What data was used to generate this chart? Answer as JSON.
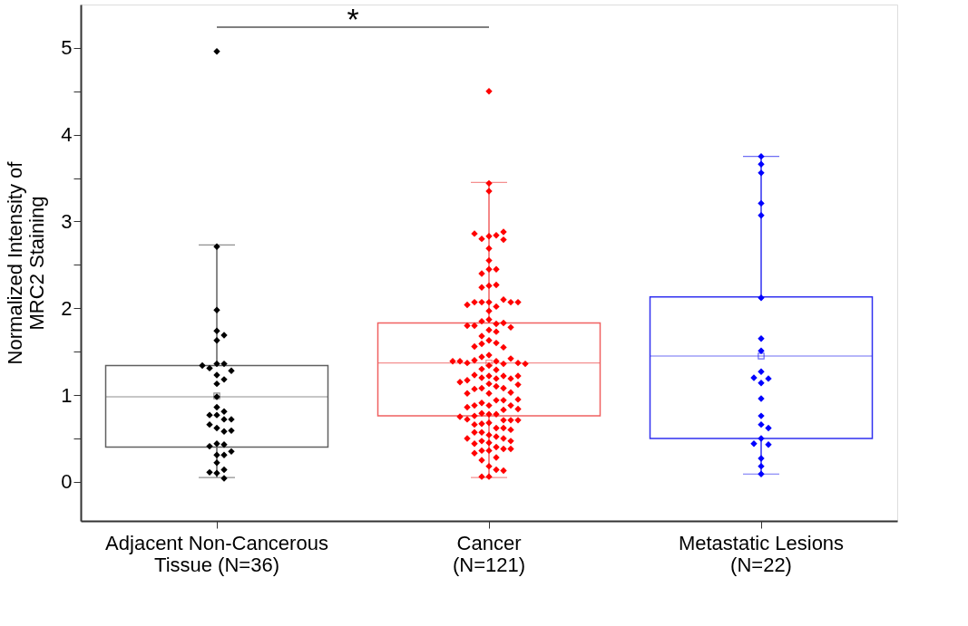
{
  "chart_data": {
    "type": "box",
    "ylabel": "Normalized Intensity of\nMRC2 Staining",
    "categories": [
      "Adjacent Non-Cancerous\nTissue (N=36)",
      "Cancer\n(N=121)",
      "Metastatic Lesions\n(N=22)"
    ],
    "boxes": [
      {
        "low": 0.05,
        "q1": 0.4,
        "median": 0.98,
        "q3": 1.34,
        "high": 2.73,
        "mean": 0.99
      },
      {
        "low": 0.05,
        "q1": 0.76,
        "median": 1.37,
        "q3": 1.83,
        "high": 3.45,
        "mean": 1.37
      },
      {
        "low": 0.09,
        "q1": 0.5,
        "median": 1.45,
        "q3": 2.13,
        "high": 3.75,
        "mean": 1.45
      }
    ],
    "colors": [
      "#606060",
      "#f06060",
      "#3030f0"
    ],
    "series": [
      {
        "type": "scatter",
        "color": "#000000",
        "x": [
          "Adjacent Non-Cancerous\nTissue (N=36)",
          "Adjacent Non-Cancerous\nTissue (N=36)",
          "Adjacent Non-Cancerous\nTissue (N=36)",
          "Adjacent Non-Cancerous\nTissue (N=36)",
          "Adjacent Non-Cancerous\nTissue (N=36)",
          "Adjacent Non-Cancerous\nTissue (N=36)",
          "Adjacent Non-Cancerous\nTissue (N=36)",
          "Adjacent Non-Cancerous\nTissue (N=36)",
          "Adjacent Non-Cancerous\nTissue (N=36)",
          "Adjacent Non-Cancerous\nTissue (N=36)",
          "Adjacent Non-Cancerous\nTissue (N=36)",
          "Adjacent Non-Cancerous\nTissue (N=36)",
          "Adjacent Non-Cancerous\nTissue (N=36)",
          "Adjacent Non-Cancerous\nTissue (N=36)",
          "Adjacent Non-Cancerous\nTissue (N=36)",
          "Adjacent Non-Cancerous\nTissue (N=36)",
          "Adjacent Non-Cancerous\nTissue (N=36)",
          "Adjacent Non-Cancerous\nTissue (N=36)",
          "Adjacent Non-Cancerous\nTissue (N=36)",
          "Adjacent Non-Cancerous\nTissue (N=36)",
          "Adjacent Non-Cancerous\nTissue (N=36)",
          "Adjacent Non-Cancerous\nTissue (N=36)",
          "Adjacent Non-Cancerous\nTissue (N=36)",
          "Adjacent Non-Cancerous\nTissue (N=36)",
          "Adjacent Non-Cancerous\nTissue (N=36)",
          "Adjacent Non-Cancerous\nTissue (N=36)",
          "Adjacent Non-Cancerous\nTissue (N=36)",
          "Adjacent Non-Cancerous\nTissue (N=36)",
          "Adjacent Non-Cancerous\nTissue (N=36)",
          "Adjacent Non-Cancerous\nTissue (N=36)",
          "Adjacent Non-Cancerous\nTissue (N=36)",
          "Adjacent Non-Cancerous\nTissue (N=36)",
          "Adjacent Non-Cancerous\nTissue (N=36)",
          "Adjacent Non-Cancerous\nTissue (N=36)",
          "Adjacent Non-Cancerous\nTissue (N=36)",
          "Adjacent Non-Cancerous\nTissue (N=36)"
        ],
        "values": [
          4.96,
          2.71,
          1.98,
          1.74,
          1.69,
          1.63,
          1.36,
          1.36,
          1.31,
          1.28,
          1.34,
          1.23,
          1.18,
          1.13,
          0.98,
          0.86,
          0.77,
          0.81,
          0.77,
          0.72,
          0.72,
          0.62,
          0.66,
          0.58,
          0.59,
          0.44,
          0.43,
          0.41,
          0.31,
          0.31,
          0.35,
          0.22,
          0.14,
          0.1,
          0.04,
          0.11
        ]
      },
      {
        "type": "scatter",
        "color": "#ff0000",
        "x": [
          "Cancer\n(N=121)",
          "Cancer\n(N=121)",
          "Cancer\n(N=121)",
          "Cancer\n(N=121)",
          "Cancer\n(N=121)",
          "Cancer\n(N=121)",
          "Cancer\n(N=121)",
          "Cancer\n(N=121)",
          "Cancer\n(N=121)",
          "Cancer\n(N=121)",
          "Cancer\n(N=121)",
          "Cancer\n(N=121)",
          "Cancer\n(N=121)",
          "Cancer\n(N=121)",
          "Cancer\n(N=121)",
          "Cancer\n(N=121)",
          "Cancer\n(N=121)",
          "Cancer\n(N=121)",
          "Cancer\n(N=121)",
          "Cancer\n(N=121)",
          "Cancer\n(N=121)",
          "Cancer\n(N=121)",
          "Cancer\n(N=121)",
          "Cancer\n(N=121)",
          "Cancer\n(N=121)",
          "Cancer\n(N=121)",
          "Cancer\n(N=121)",
          "Cancer\n(N=121)",
          "Cancer\n(N=121)",
          "Cancer\n(N=121)",
          "Cancer\n(N=121)",
          "Cancer\n(N=121)",
          "Cancer\n(N=121)",
          "Cancer\n(N=121)",
          "Cancer\n(N=121)",
          "Cancer\n(N=121)",
          "Cancer\n(N=121)",
          "Cancer\n(N=121)",
          "Cancer\n(N=121)",
          "Cancer\n(N=121)",
          "Cancer\n(N=121)",
          "Cancer\n(N=121)",
          "Cancer\n(N=121)",
          "Cancer\n(N=121)",
          "Cancer\n(N=121)",
          "Cancer\n(N=121)",
          "Cancer\n(N=121)",
          "Cancer\n(N=121)",
          "Cancer\n(N=121)",
          "Cancer\n(N=121)",
          "Cancer\n(N=121)",
          "Cancer\n(N=121)",
          "Cancer\n(N=121)",
          "Cancer\n(N=121)",
          "Cancer\n(N=121)",
          "Cancer\n(N=121)",
          "Cancer\n(N=121)",
          "Cancer\n(N=121)",
          "Cancer\n(N=121)",
          "Cancer\n(N=121)",
          "Cancer\n(N=121)",
          "Cancer\n(N=121)",
          "Cancer\n(N=121)",
          "Cancer\n(N=121)",
          "Cancer\n(N=121)",
          "Cancer\n(N=121)",
          "Cancer\n(N=121)",
          "Cancer\n(N=121)",
          "Cancer\n(N=121)",
          "Cancer\n(N=121)",
          "Cancer\n(N=121)",
          "Cancer\n(N=121)",
          "Cancer\n(N=121)",
          "Cancer\n(N=121)",
          "Cancer\n(N=121)",
          "Cancer\n(N=121)",
          "Cancer\n(N=121)",
          "Cancer\n(N=121)",
          "Cancer\n(N=121)",
          "Cancer\n(N=121)",
          "Cancer\n(N=121)",
          "Cancer\n(N=121)",
          "Cancer\n(N=121)",
          "Cancer\n(N=121)",
          "Cancer\n(N=121)",
          "Cancer\n(N=121)",
          "Cancer\n(N=121)",
          "Cancer\n(N=121)",
          "Cancer\n(N=121)",
          "Cancer\n(N=121)",
          "Cancer\n(N=121)",
          "Cancer\n(N=121)",
          "Cancer\n(N=121)",
          "Cancer\n(N=121)",
          "Cancer\n(N=121)",
          "Cancer\n(N=121)",
          "Cancer\n(N=121)",
          "Cancer\n(N=121)",
          "Cancer\n(N=121)",
          "Cancer\n(N=121)",
          "Cancer\n(N=121)",
          "Cancer\n(N=121)",
          "Cancer\n(N=121)",
          "Cancer\n(N=121)",
          "Cancer\n(N=121)",
          "Cancer\n(N=121)",
          "Cancer\n(N=121)",
          "Cancer\n(N=121)",
          "Cancer\n(N=121)",
          "Cancer\n(N=121)",
          "Cancer\n(N=121)",
          "Cancer\n(N=121)",
          "Cancer\n(N=121)",
          "Cancer\n(N=121)",
          "Cancer\n(N=121)",
          "Cancer\n(N=121)",
          "Cancer\n(N=121)",
          "Cancer\n(N=121)",
          "Cancer\n(N=121)",
          "Cancer\n(N=121)",
          "Cancer\n(N=121)"
        ],
        "values": [
          4.5,
          3.44,
          3.35,
          2.83,
          2.84,
          2.8,
          2.88,
          2.86,
          2.79,
          2.69,
          2.55,
          2.45,
          2.45,
          2.4,
          2.26,
          2.27,
          2.24,
          1.97,
          2.07,
          2.02,
          2.07,
          2.1,
          2.07,
          2.07,
          2.04,
          2.07,
          1.87,
          1.75,
          1.82,
          1.85,
          1.83,
          1.8,
          1.78,
          1.8,
          1.73,
          1.63,
          1.68,
          1.6,
          1.59,
          1.55,
          1.56,
          1.46,
          1.39,
          1.44,
          1.34,
          1.36,
          1.29,
          1.4,
          1.42,
          1.37,
          1.37,
          1.39,
          1.36,
          1.39,
          1.3,
          1.22,
          1.19,
          1.22,
          1.2,
          1.23,
          1.19,
          1.13,
          1.17,
          1.22,
          1.1,
          1.08,
          1.08,
          1.07,
          1.02,
          1.03,
          1.12,
          1.15,
          0.94,
          0.88,
          1.02,
          0.91,
          0.94,
          0.88,
          0.88,
          0.78,
          0.78,
          0.79,
          0.86,
          0.83,
          0.76,
          0.84,
          0.95,
          0.71,
          0.68,
          0.71,
          0.72,
          0.62,
          0.67,
          0.71,
          0.66,
          0.54,
          0.57,
          0.62,
          0.57,
          0.6,
          0.52,
          0.75,
          0.47,
          0.36,
          0.5,
          0.44,
          0.4,
          0.45,
          0.36,
          0.38,
          0.47,
          0.38,
          0.33,
          0.5,
          0.28,
          0.18,
          0.25,
          0.14,
          0.06,
          0.06,
          0.13
        ]
      },
      {
        "type": "scatter",
        "color": "#0000ff",
        "x": [
          "Metastatic Lesions\n(N=22)",
          "Metastatic Lesions\n(N=22)",
          "Metastatic Lesions\n(N=22)",
          "Metastatic Lesions\n(N=22)",
          "Metastatic Lesions\n(N=22)",
          "Metastatic Lesions\n(N=22)",
          "Metastatic Lesions\n(N=22)",
          "Metastatic Lesions\n(N=22)",
          "Metastatic Lesions\n(N=22)",
          "Metastatic Lesions\n(N=22)",
          "Metastatic Lesions\n(N=22)",
          "Metastatic Lesions\n(N=22)",
          "Metastatic Lesions\n(N=22)",
          "Metastatic Lesions\n(N=22)",
          "Metastatic Lesions\n(N=22)",
          "Metastatic Lesions\n(N=22)",
          "Metastatic Lesions\n(N=22)",
          "Metastatic Lesions\n(N=22)",
          "Metastatic Lesions\n(N=22)",
          "Metastatic Lesions\n(N=22)",
          "Metastatic Lesions\n(N=22)",
          "Metastatic Lesions\n(N=22)"
        ],
        "values": [
          3.75,
          3.66,
          3.56,
          3.21,
          3.07,
          2.12,
          1.65,
          1.51,
          1.27,
          1.19,
          1.2,
          1.14,
          0.96,
          0.76,
          0.66,
          0.62,
          0.5,
          0.43,
          0.44,
          0.27,
          0.18,
          0.09
        ]
      }
    ],
    "marker": "diamond",
    "ylim": [
      -0.45,
      5.5
    ],
    "yticks": [
      0,
      {
        "value": 0.5,
        "label": null
      },
      1,
      {
        "value": 1.5,
        "label": null
      },
      2,
      {
        "value": 2.5,
        "label": null
      },
      3,
      {
        "value": 3.5,
        "label": null
      },
      4,
      {
        "value": 4.5,
        "label": null
      },
      5
    ],
    "annotations": [
      "*"
    ],
    "grid": false
  }
}
